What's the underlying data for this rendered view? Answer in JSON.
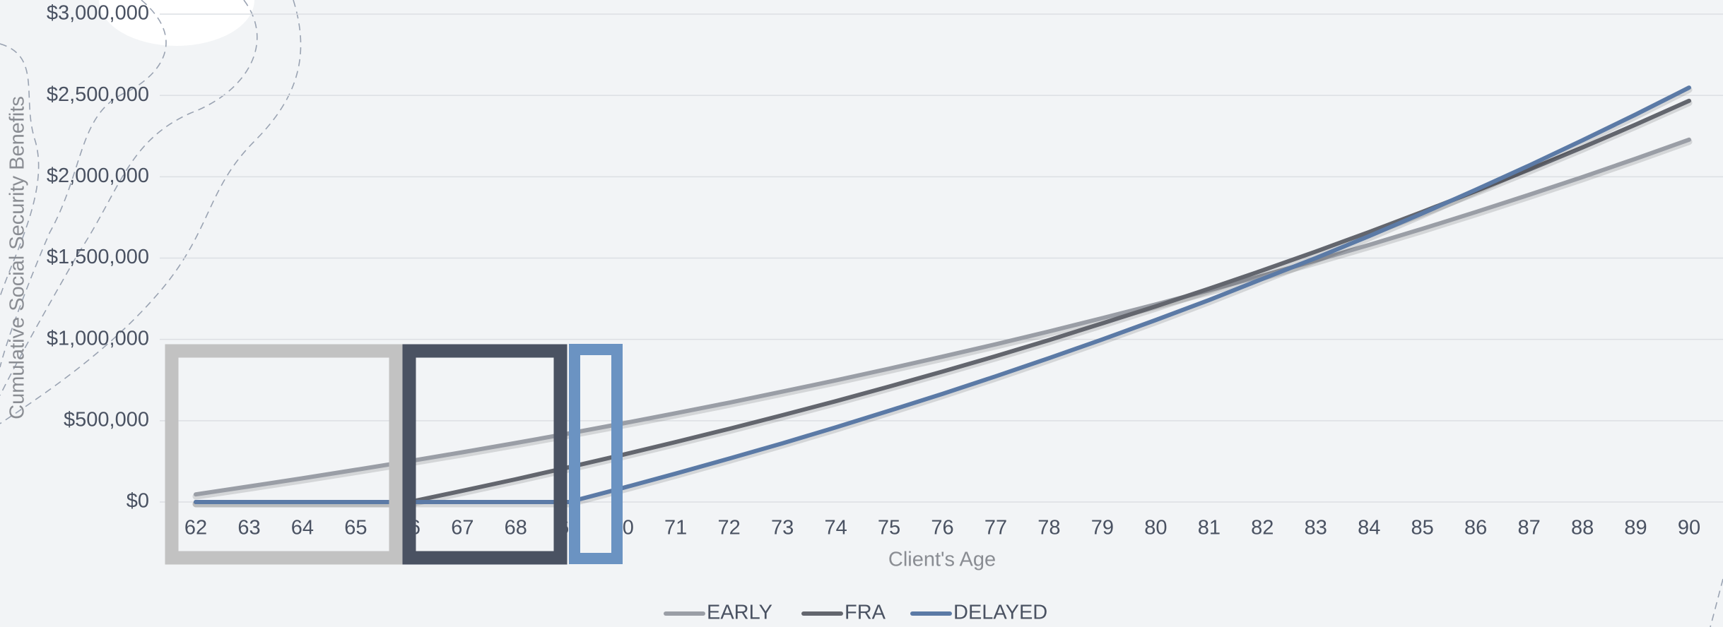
{
  "chart_data": {
    "type": "line",
    "x_label": "Client's Age",
    "y_label": "Cumulative Social Security Benefits",
    "x": [
      62,
      63,
      64,
      65,
      66,
      67,
      68,
      69,
      70,
      71,
      72,
      73,
      74,
      75,
      76,
      77,
      78,
      79,
      80,
      81,
      82,
      83,
      84,
      85,
      86,
      87,
      88,
      89,
      90
    ],
    "xlim": [
      62,
      90
    ],
    "xticks": [
      62,
      63,
      64,
      65,
      66,
      67,
      68,
      69,
      70,
      71,
      72,
      73,
      74,
      75,
      76,
      77,
      78,
      79,
      80,
      81,
      82,
      83,
      84,
      85,
      86,
      87,
      88,
      89,
      90
    ],
    "ylim": [
      0,
      3000000
    ],
    "yticks": [
      {
        "value": 0,
        "label": "$0"
      },
      {
        "value": 500000,
        "label": "$500,000"
      },
      {
        "value": 1000000,
        "label": "$1,000,000"
      },
      {
        "value": 1500000,
        "label": "$1,500,000"
      },
      {
        "value": 2000000,
        "label": "$2,000,000"
      },
      {
        "value": 2500000,
        "label": "$2,500,000"
      },
      {
        "value": 3000000,
        "label": "$3,000,000"
      }
    ],
    "grid": true,
    "legend": "bottom",
    "series": [
      {
        "name": "EARLY",
        "color": "#9a9ea6",
        "values": [
          47000,
          96000,
          146000,
          198000,
          251000,
          306000,
          363000,
          422000,
          483000,
          546000,
          611000,
          679000,
          748000,
          820000,
          894000,
          970000,
          1049000,
          1131000,
          1215000,
          1302000,
          1392000,
          1485000,
          1581000,
          1680000,
          1783000,
          1889000,
          1998000,
          2111000,
          2228000
        ]
      },
      {
        "name": "FRA",
        "color": "#63666e",
        "values": [
          0,
          0,
          0,
          0,
          0,
          69000,
          140000,
          214000,
          290000,
          369000,
          450000,
          534000,
          620000,
          710000,
          802000,
          897000,
          996000,
          1099000,
          1203000,
          1312000,
          1424000,
          1540000,
          1660000,
          1784000,
          1912000,
          2044000,
          2180000,
          2321000,
          2467000
        ]
      },
      {
        "name": "DELAYED",
        "color": "#5b7aa6",
        "values": [
          0,
          0,
          0,
          0,
          0,
          0,
          0,
          0,
          86000,
          175000,
          267000,
          361000,
          459000,
          561000,
          665000,
          773000,
          885000,
          1000000,
          1119000,
          1242000,
          1372000,
          1500000,
          1635000,
          1775000,
          1920000,
          2069000,
          2224000,
          2383000,
          2548000
        ]
      }
    ]
  }
}
